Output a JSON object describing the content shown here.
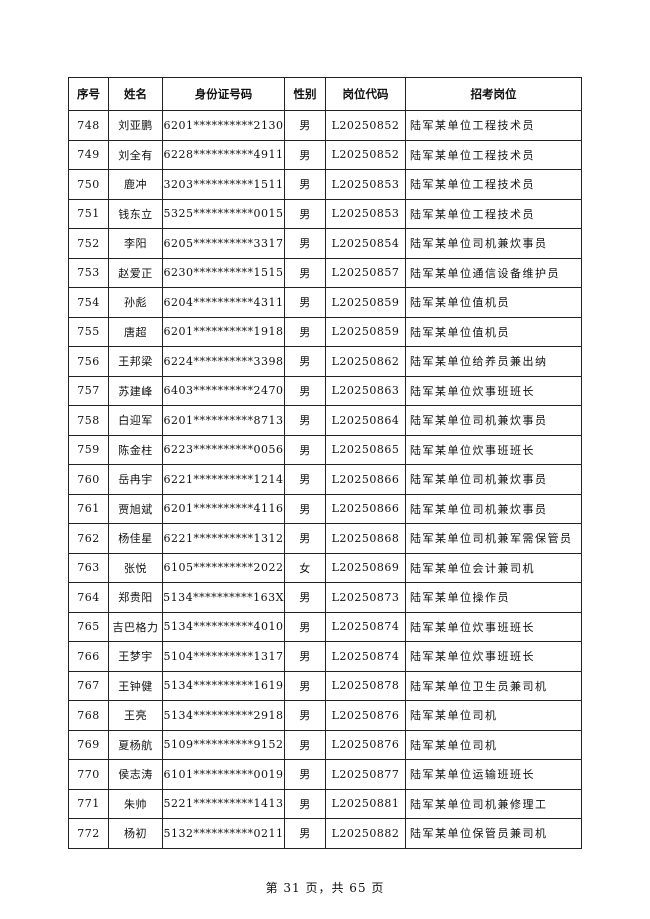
{
  "headers": [
    "序号",
    "姓名",
    "身份证号码",
    "性别",
    "岗位代码",
    "招考岗位"
  ],
  "rows": [
    [
      "748",
      "刘亚鹏",
      "6201**********2130",
      "男",
      "L20250852",
      "陆军某单位工程技术员"
    ],
    [
      "749",
      "刘全有",
      "6228**********4911",
      "男",
      "L20250852",
      "陆军某单位工程技术员"
    ],
    [
      "750",
      "鹿冲",
      "3203**********1511",
      "男",
      "L20250853",
      "陆军某单位工程技术员"
    ],
    [
      "751",
      "钱东立",
      "5325**********0015",
      "男",
      "L20250853",
      "陆军某单位工程技术员"
    ],
    [
      "752",
      "李阳",
      "6205**********3317",
      "男",
      "L20250854",
      "陆军某单位司机兼炊事员"
    ],
    [
      "753",
      "赵爱正",
      "6230**********1515",
      "男",
      "L20250857",
      "陆军某单位通信设备维护员"
    ],
    [
      "754",
      "孙彪",
      "6204**********4311",
      "男",
      "L20250859",
      "陆军某单位值机员"
    ],
    [
      "755",
      "唐超",
      "6201**********1918",
      "男",
      "L20250859",
      "陆军某单位值机员"
    ],
    [
      "756",
      "王邦梁",
      "6224**********3398",
      "男",
      "L20250862",
      "陆军某单位给养员兼出纳"
    ],
    [
      "757",
      "苏建峰",
      "6403**********2470",
      "男",
      "L20250863",
      "陆军某单位炊事班班长"
    ],
    [
      "758",
      "白迎军",
      "6201**********8713",
      "男",
      "L20250864",
      "陆军某单位司机兼炊事员"
    ],
    [
      "759",
      "陈金柱",
      "6223**********0056",
      "男",
      "L20250865",
      "陆军某单位炊事班班长"
    ],
    [
      "760",
      "岳冉宇",
      "6221**********1214",
      "男",
      "L20250866",
      "陆军某单位司机兼炊事员"
    ],
    [
      "761",
      "贾旭斌",
      "6201**********4116",
      "男",
      "L20250866",
      "陆军某单位司机兼炊事员"
    ],
    [
      "762",
      "杨佳星",
      "6221**********1312",
      "男",
      "L20250868",
      "陆军某单位司机兼军需保管员"
    ],
    [
      "763",
      "张悦",
      "6105**********2022",
      "女",
      "L20250869",
      "陆军某单位会计兼司机"
    ],
    [
      "764",
      "郑贵阳",
      "5134**********163X",
      "男",
      "L20250873",
      "陆军某单位操作员"
    ],
    [
      "765",
      "吉巴格力",
      "5134**********4010",
      "男",
      "L20250874",
      "陆军某单位炊事班班长"
    ],
    [
      "766",
      "王梦宇",
      "5104**********1317",
      "男",
      "L20250874",
      "陆军某单位炊事班班长"
    ],
    [
      "767",
      "王钟健",
      "5134**********1619",
      "男",
      "L20250878",
      "陆军某单位卫生员兼司机"
    ],
    [
      "768",
      "王亮",
      "5134**********2918",
      "男",
      "L20250876",
      "陆军某单位司机"
    ],
    [
      "769",
      "夏杨航",
      "5109**********9152",
      "男",
      "L20250876",
      "陆军某单位司机"
    ],
    [
      "770",
      "侯志涛",
      "6101**********0019",
      "男",
      "L20250877",
      "陆军某单位运输班班长"
    ],
    [
      "771",
      "朱帅",
      "5221**********1413",
      "男",
      "L20250881",
      "陆军某单位司机兼修理工"
    ],
    [
      "772",
      "杨初",
      "5132**********0211",
      "男",
      "L20250882",
      "陆军某单位保管员兼司机"
    ]
  ],
  "footer": "第 31 页，共 65 页"
}
